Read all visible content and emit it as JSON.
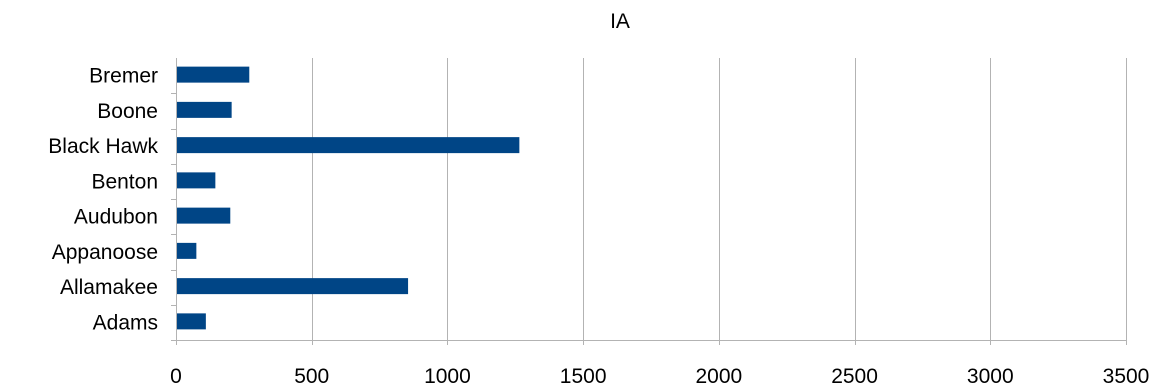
{
  "chart_data": {
    "type": "bar",
    "orientation": "horizontal",
    "title": "IA",
    "xlabel": "",
    "ylabel": "",
    "categories": [
      "Adams",
      "Allamakee",
      "Appanoose",
      "Audubon",
      "Benton",
      "Black Hawk",
      "Boone",
      "Bremer"
    ],
    "values": [
      110,
      855,
      75,
      200,
      145,
      1265,
      205,
      270
    ],
    "xlim": [
      0,
      3500
    ],
    "xticks": [
      0,
      500,
      1000,
      1500,
      2000,
      2500,
      3000,
      3500
    ],
    "grid": true,
    "legend": "none",
    "bar_color": "#004586"
  }
}
